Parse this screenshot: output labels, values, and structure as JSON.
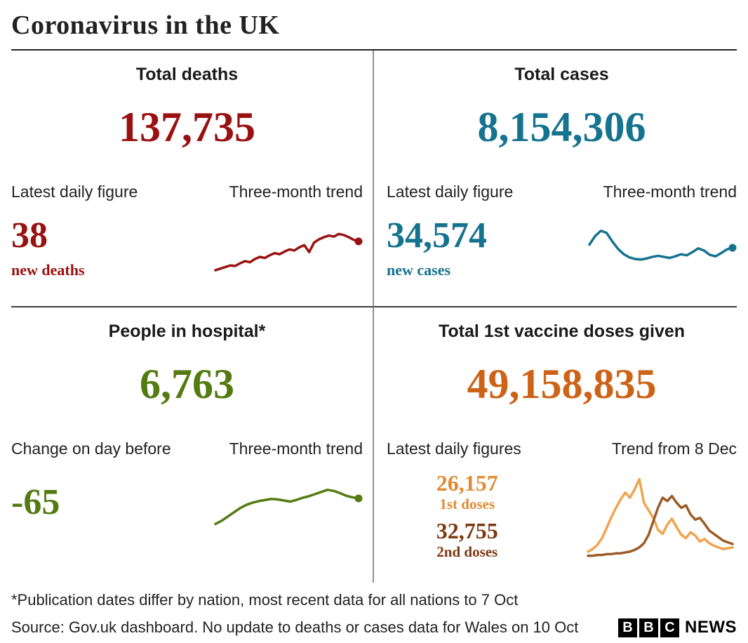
{
  "page": {
    "title": "Coronavirus in the UK",
    "footnote": "*Publication dates differ by nation, most recent data for all nations to 7 Oct",
    "source": "Source: Gov.uk dashboard. No update to deaths or cases data for Wales on 10 Oct",
    "brand": {
      "letters": [
        "B",
        "B",
        "C"
      ],
      "name": "NEWS"
    }
  },
  "colors": {
    "deaths": "#991111",
    "cases": "#16738f",
    "hospital": "#547b12",
    "vaccine_total": "#cd6317",
    "first_doses": "#e08b33",
    "first_doses_line": "#f0a44e",
    "second_doses": "#7d3910",
    "second_doses_line": "#9a5c28"
  },
  "panels": {
    "deaths": {
      "heading": "Total deaths",
      "total": "137,735",
      "left_label": "Latest daily figure",
      "right_label": "Three-month trend",
      "daily_value": "38",
      "daily_caption": "new deaths"
    },
    "cases": {
      "heading": "Total cases",
      "total": "8,154,306",
      "left_label": "Latest daily figure",
      "right_label": "Three-month trend",
      "daily_value": "34,574",
      "daily_caption": "new cases"
    },
    "hospital": {
      "heading": "People in hospital*",
      "total": "6,763",
      "left_label": "Change on day before",
      "right_label": "Three-month trend",
      "daily_value": "-65"
    },
    "vaccine": {
      "heading": "Total 1st vaccine doses given",
      "total": "49,158,835",
      "left_label": "Latest daily figures",
      "right_label": "Trend from 8 Dec",
      "first_value": "26,157",
      "first_caption": "1st doses",
      "second_value": "32,755",
      "second_caption": "2nd doses"
    }
  },
  "chart_data": [
    {
      "type": "line",
      "name": "deaths-trend",
      "title": "Three-month trend",
      "ylabel": "relative level (0-100, unlabeled sparkline)",
      "ylim": [
        0,
        100
      ],
      "grid": false,
      "series": [
        {
          "name": "Daily deaths three-month trend",
          "color": "#991111",
          "end_dot": true,
          "values": [
            4,
            7,
            10,
            13,
            12,
            17,
            21,
            19,
            25,
            29,
            27,
            32,
            36,
            34,
            39,
            43,
            41,
            47,
            51,
            38,
            56,
            62,
            66,
            69,
            67,
            72,
            70,
            66,
            61,
            58
          ]
        }
      ]
    },
    {
      "type": "line",
      "name": "cases-trend",
      "title": "Three-month trend",
      "ylabel": "relative level (0-100, unlabeled sparkline)",
      "ylim": [
        0,
        100
      ],
      "grid": false,
      "series": [
        {
          "name": "Daily cases three-month trend",
          "color": "#16738f",
          "end_dot": true,
          "values": [
            52,
            68,
            78,
            74,
            58,
            44,
            34,
            28,
            25,
            24,
            26,
            29,
            31,
            29,
            27,
            30,
            34,
            32,
            38,
            45,
            41,
            33,
            30,
            36,
            43,
            46
          ]
        }
      ]
    },
    {
      "type": "line",
      "name": "hospital-trend",
      "title": "Three-month trend",
      "ylabel": "relative level (0-100, unlabeled sparkline)",
      "ylim": [
        0,
        100
      ],
      "grid": false,
      "series": [
        {
          "name": "People in hospital three-month trend",
          "color": "#547b12",
          "end_dot": true,
          "values": [
            6,
            12,
            20,
            28,
            36,
            42,
            46,
            49,
            51,
            53,
            52,
            50,
            48,
            51,
            55,
            58,
            62,
            66,
            70,
            68,
            64,
            59,
            56,
            54
          ]
        }
      ]
    },
    {
      "type": "line",
      "name": "vaccine-trend",
      "title": "Trend from 8 Dec",
      "ylabel": "relative level (0-100, unlabeled sparkline)",
      "ylim": [
        0,
        100
      ],
      "grid": false,
      "series": [
        {
          "name": "1st doses",
          "color": "#f0a44e",
          "end_dot": false,
          "values": [
            6,
            9,
            14,
            22,
            34,
            47,
            58,
            68,
            76,
            70,
            80,
            92,
            64,
            55,
            46,
            32,
            27,
            38,
            45,
            35,
            26,
            22,
            29,
            25,
            18,
            21,
            16,
            13,
            11,
            9,
            10,
            11
          ]
        },
        {
          "name": "2nd doses",
          "color": "#9a5c28",
          "end_dot": false,
          "values": [
            1,
            1,
            2,
            2,
            3,
            3,
            4,
            4,
            5,
            6,
            8,
            11,
            16,
            26,
            42,
            58,
            70,
            66,
            72,
            64,
            58,
            61,
            50,
            44,
            46,
            39,
            31,
            27,
            23,
            19,
            17,
            15
          ]
        }
      ]
    }
  ]
}
